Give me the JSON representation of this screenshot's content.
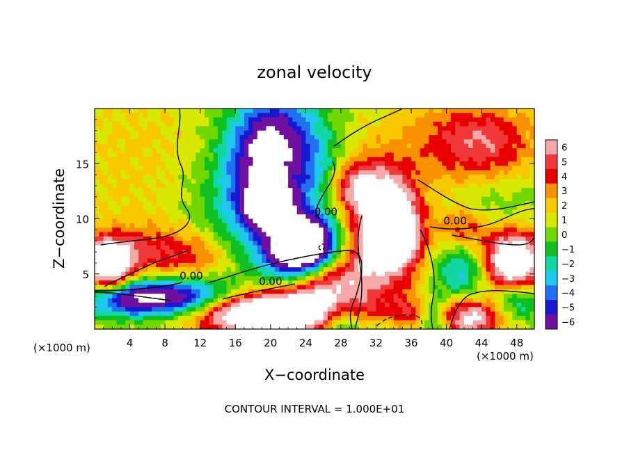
{
  "chart_data": {
    "type": "heatmap",
    "title": "zonal velocity",
    "xlabel": "X−coordinate",
    "ylabel": "Z−coordinate",
    "x_unit_label": "(×1000 m)",
    "x_unit_label_right": "(×1000 m)",
    "xlim": [
      0,
      50
    ],
    "ylim": [
      0,
      20
    ],
    "x_ticks": [
      4,
      8,
      12,
      16,
      20,
      24,
      28,
      32,
      36,
      40,
      44,
      48
    ],
    "y_ticks": [
      5,
      10,
      15
    ],
    "footer": "CONTOUR INTERVAL = 1.000E+01",
    "colorbar": {
      "levels": [
        6,
        5,
        4,
        3,
        2,
        1,
        0,
        -1,
        -2,
        -3,
        -4,
        -5,
        -6
      ],
      "labels": [
        "6",
        "5",
        "4",
        "3",
        "2",
        "1",
        "0",
        "−1",
        "−2",
        "−3",
        "−4",
        "−5",
        "−6"
      ],
      "colors": [
        "#f7a8a8",
        "#f03838",
        "#e80000",
        "#f89000",
        "#f8c800",
        "#d8e800",
        "#70d800",
        "#10c020",
        "#10d8a0",
        "#20c8f0",
        "#2070f0",
        "#1818d0",
        "#7010a0"
      ]
    },
    "contour_labels": [
      {
        "text": "0.00",
        "x": 11.0,
        "z": 4.5
      },
      {
        "text": "0.00",
        "x": 20.0,
        "z": 4.0
      },
      {
        "text": "0.00",
        "x": 26.3,
        "z": 10.3
      },
      {
        "text": "0.00",
        "x": 41.0,
        "z": 9.5
      }
    ],
    "features": [
      {
        "x": 44,
        "z": 17,
        "v": 4.5,
        "sx": 4.5,
        "sz": 2.5
      },
      {
        "x": 34,
        "z": 10,
        "v": 9,
        "sx": 2.2,
        "sz": 3.2,
        "rot": -0.45
      },
      {
        "x": 32,
        "z": 7,
        "v": 6,
        "sx": 2.5,
        "sz": 2.5
      },
      {
        "x": 29.5,
        "z": 12.8,
        "v": 5,
        "sx": 2.0,
        "sz": 1.6
      },
      {
        "x": 34,
        "z": 1.2,
        "v": 11,
        "sx": 4.0,
        "sz": 1.4
      },
      {
        "x": 22,
        "z": 1.6,
        "v": 9,
        "sx": 6,
        "sz": 1.4
      },
      {
        "x": 27,
        "z": 4,
        "v": 5,
        "sx": 3,
        "sz": 1.6
      },
      {
        "x": 47.5,
        "z": 6,
        "v": 10,
        "sx": 2.5,
        "sz": 2.2
      },
      {
        "x": 42,
        "z": 9,
        "v": 4,
        "sx": 2,
        "sz": 1.5
      },
      {
        "x": 1.5,
        "z": 5.8,
        "v": 10,
        "sx": 1.8,
        "sz": 1.6
      },
      {
        "x": 6,
        "z": 7,
        "v": 3.5,
        "sx": 4,
        "sz": 1.6
      },
      {
        "x": 12,
        "z": 6,
        "v": 2.5,
        "sx": 3,
        "sz": 1.8
      },
      {
        "x": 16,
        "z": 1.2,
        "v": 5,
        "sx": 5,
        "sz": 1.2
      },
      {
        "x": 43,
        "z": 1,
        "v": 6,
        "sx": 2.5,
        "sz": 1.2
      },
      {
        "x": 19,
        "z": 14.5,
        "v": -5,
        "sx": 3.0,
        "sz": 4.0
      },
      {
        "x": 20,
        "z": 11,
        "v": -7,
        "sx": 2.0,
        "sz": 1.5
      },
      {
        "x": 24,
        "z": 7.8,
        "v": -11,
        "sx": 2.4,
        "sz": 1.7
      },
      {
        "x": 22,
        "z": 6.5,
        "v": -4,
        "sx": 2.6,
        "sz": 1.8
      },
      {
        "x": 21,
        "z": 17.5,
        "v": -4.5,
        "sx": 3.5,
        "sz": 3.0
      },
      {
        "x": 25,
        "z": 14,
        "v": -2.5,
        "sx": 2.5,
        "sz": 3.0
      },
      {
        "x": 33,
        "z": 1.0,
        "v": -10,
        "sx": 2.8,
        "sz": 1.5
      },
      {
        "x": 28,
        "z": 1.0,
        "v": -6,
        "sx": 1.8,
        "sz": 1.5
      },
      {
        "x": 38.5,
        "z": 1.0,
        "v": -6,
        "sx": 1.5,
        "sz": 1.5
      },
      {
        "x": 5,
        "z": 2.8,
        "v": -8,
        "sx": 4.5,
        "sz": 1.2
      },
      {
        "x": 12,
        "z": 2.8,
        "v": -5,
        "sx": 3.5,
        "sz": 1.5
      },
      {
        "x": 42,
        "z": 5.5,
        "v": -4,
        "sx": 2.5,
        "sz": 2.0
      },
      {
        "x": 48,
        "z": 2.8,
        "v": -5,
        "sx": 2.0,
        "sz": 1.3
      },
      {
        "x": 16,
        "z": 11,
        "v": -2.2,
        "sx": 4.0,
        "sz": 4.0
      },
      {
        "x": 45,
        "z": 11,
        "v": -1.5,
        "sx": 4.0,
        "sz": 2.0
      },
      {
        "x": 5,
        "z": 15,
        "v": 1.2,
        "sx": 8,
        "sz": 6
      },
      {
        "x": 36,
        "z": 16,
        "v": 1.3,
        "sx": 6,
        "sz": 4
      }
    ]
  }
}
